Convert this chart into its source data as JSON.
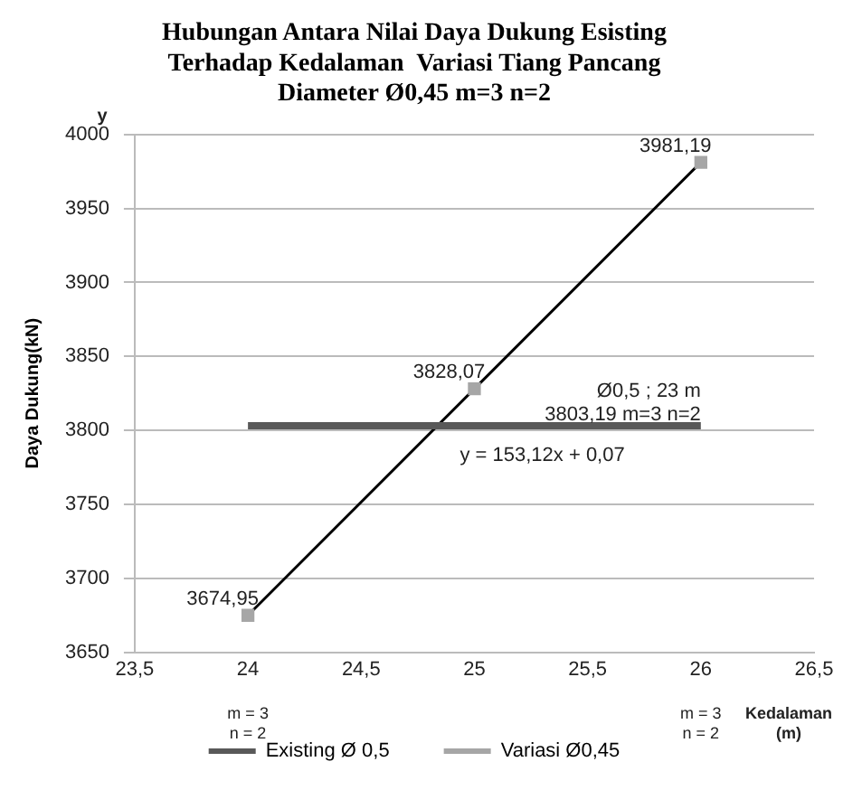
{
  "chart_data": {
    "type": "line",
    "title": "Hubungan Antara Nilai Daya Dukung Esisting Terhadap Kedalaman  Variasi Tiang Pancang Diameter Ø0,45 m=3 n=2",
    "xlabel": "Kedalaman (m)",
    "ylabel": "Daya Dukung(kN)",
    "x": [
      24,
      25,
      26
    ],
    "series": [
      {
        "name": "Existing Ø 0,5",
        "color": "#595959",
        "x": [
          24,
          26
        ],
        "values": [
          3803.19,
          3803.19
        ],
        "marker": "none"
      },
      {
        "name": "Variasi Ø0,45",
        "color": "#a6a6a6",
        "values": [
          3674.95,
          3828.07,
          3981.19
        ],
        "marker": "square",
        "value_labels": [
          "3674,95",
          "3828,07",
          "3981,19"
        ]
      }
    ],
    "xlim": [
      23.5,
      26.5
    ],
    "xticks": [
      {
        "value": 23.5,
        "label": "23,5"
      },
      24,
      {
        "value": 24.5,
        "label": "24,5"
      },
      25,
      {
        "value": 25.5,
        "label": "25,5"
      },
      26,
      {
        "value": 26.5,
        "label": "26,5"
      }
    ],
    "ylim": [
      3650,
      4000
    ],
    "yticks": [
      3650,
      3700,
      3750,
      3800,
      3850,
      3900,
      3950,
      4000
    ],
    "grid": "y",
    "legend": "bottom",
    "annotations": [
      "y",
      "m = 3\nn = 2",
      "m = 3\nn = 2",
      {
        "text": "Ø0,5 ; 23 m\n3803,19 m=3 n=2",
        "x": 26,
        "y": 3803.19
      },
      "y = 153,12x + 0,07"
    ]
  }
}
